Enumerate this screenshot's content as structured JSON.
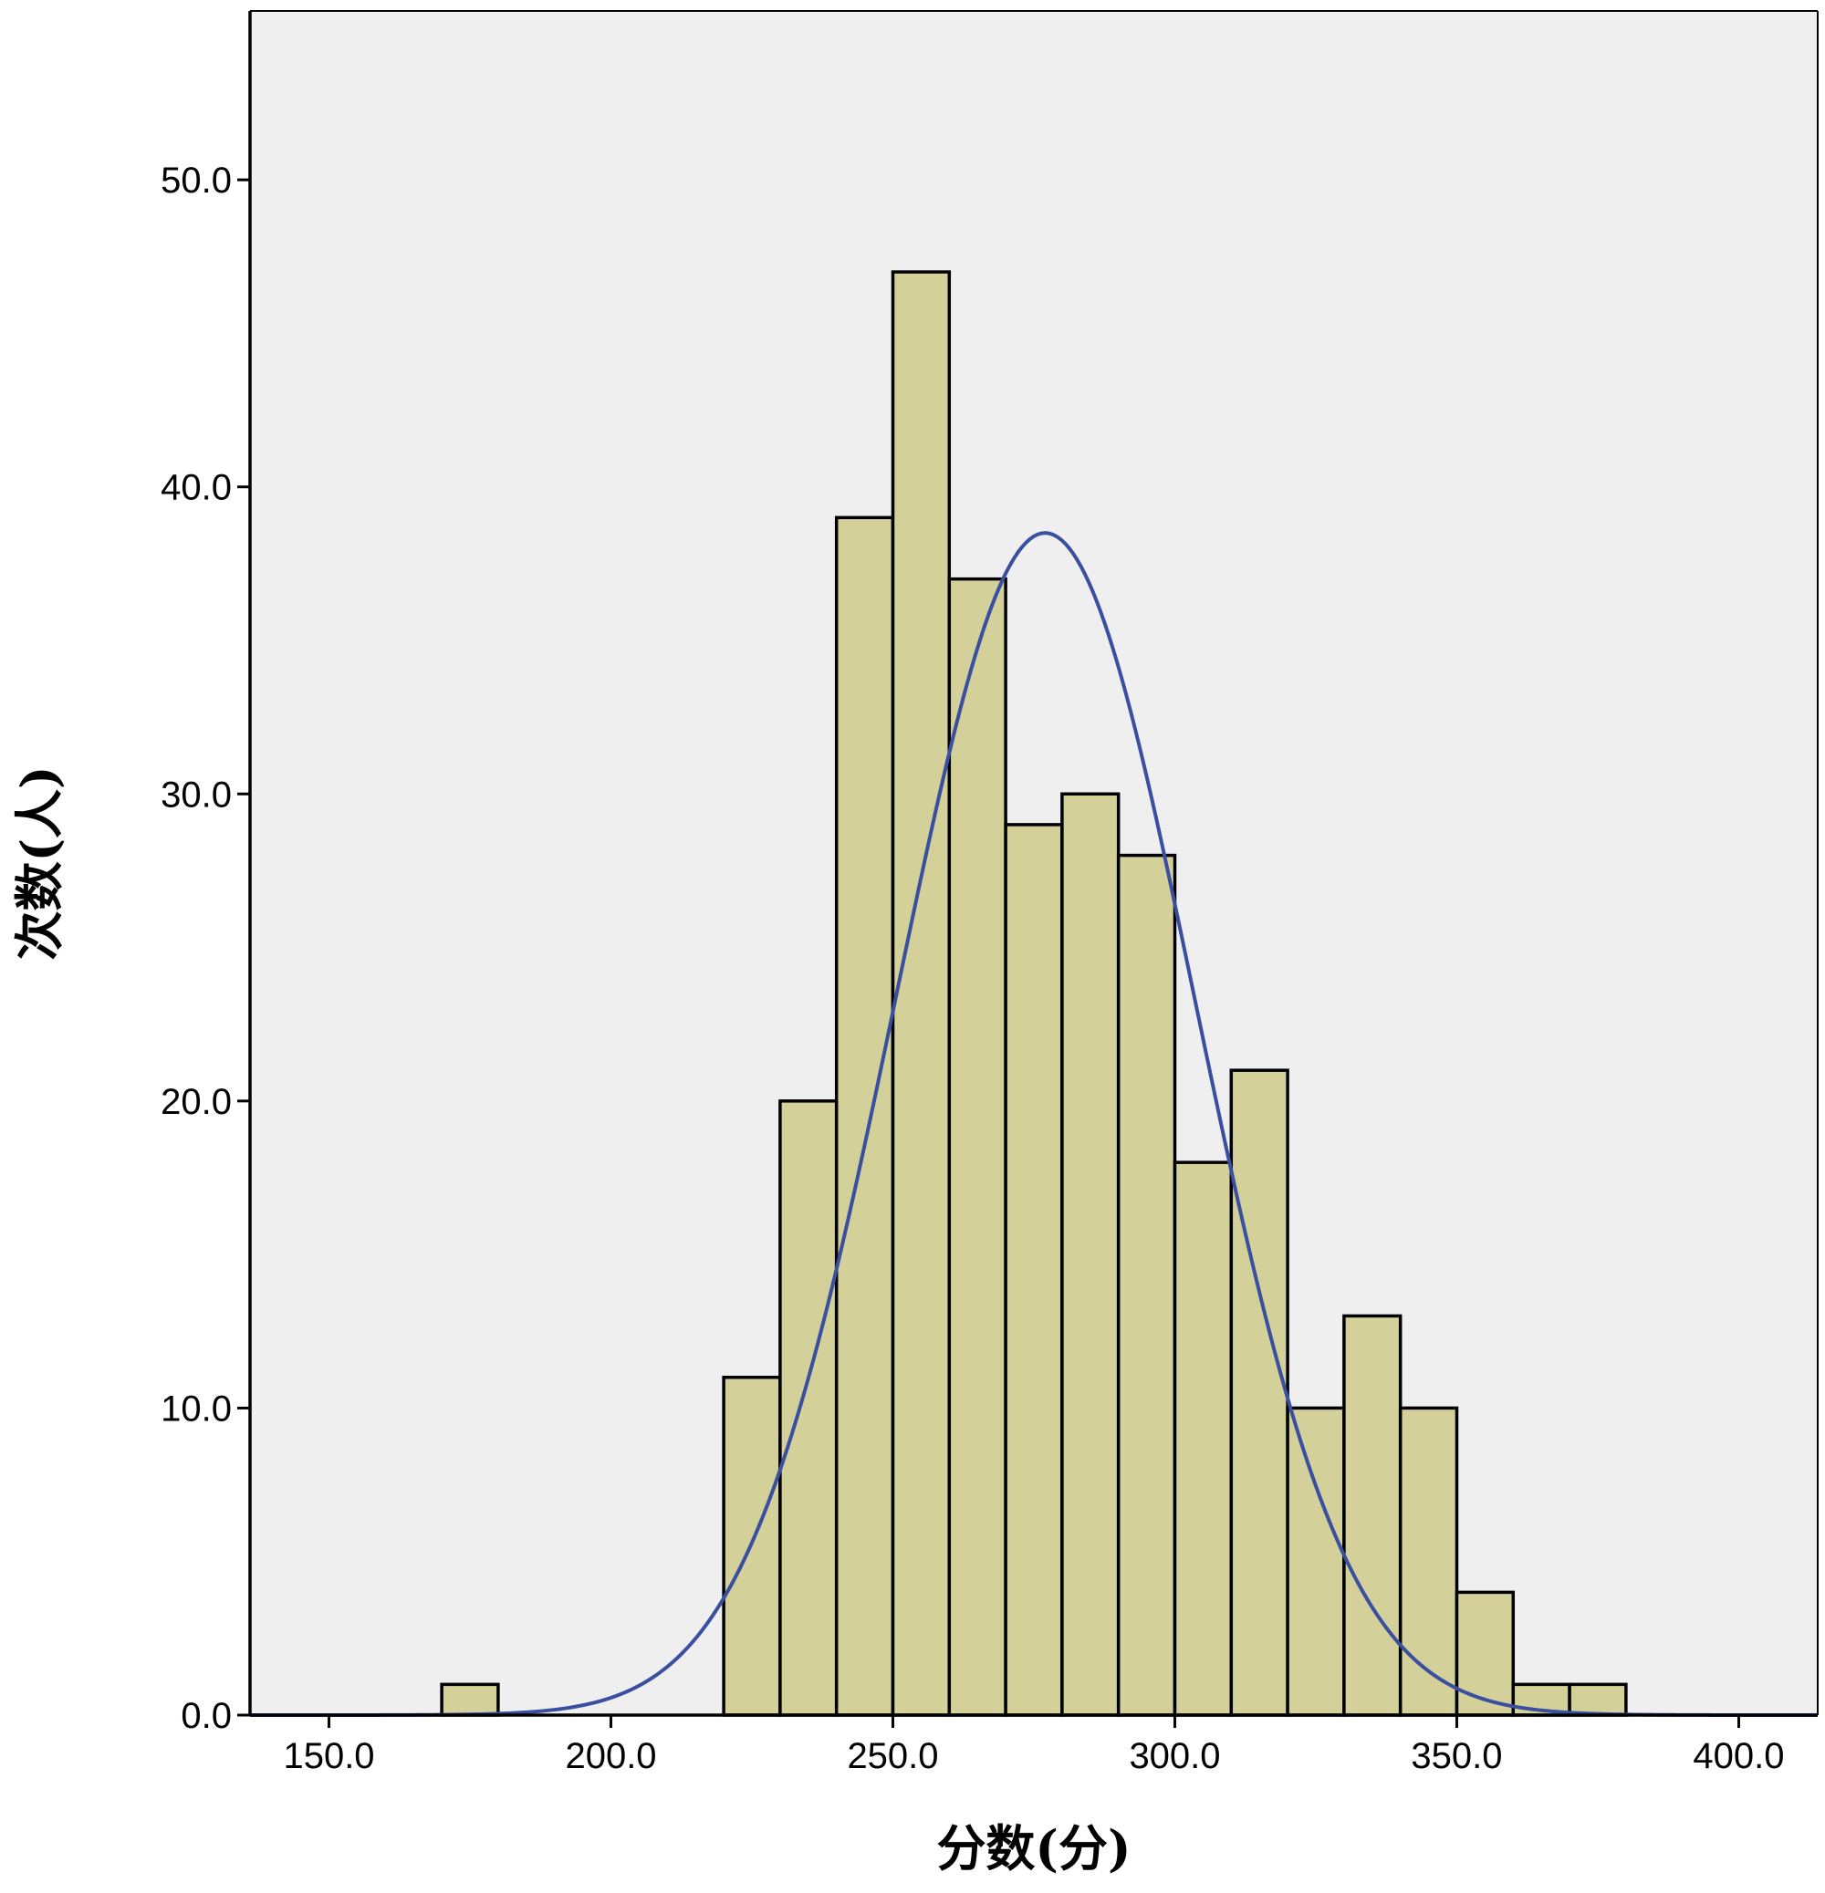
{
  "chart_data": {
    "type": "bar",
    "subtype": "histogram with normal curve",
    "xlabel": "分数(分)",
    "ylabel": "次数(人)",
    "xlim": [
      136,
      414
    ],
    "ylim": [
      0,
      55.5
    ],
    "x_ticks": [
      150,
      200,
      250,
      300,
      350,
      400
    ],
    "x_tick_labels": [
      "150.0",
      "200.0",
      "250.0",
      "300.0",
      "350.0",
      "400.0"
    ],
    "y_ticks": [
      0,
      10,
      20,
      30,
      40,
      50
    ],
    "y_tick_labels": [
      "0.0",
      "10.0",
      "20.0",
      "30.0",
      "40.0",
      "50.0"
    ],
    "bins": [
      {
        "start": 170,
        "end": 180,
        "count": 1
      },
      {
        "start": 220,
        "end": 230,
        "count": 11
      },
      {
        "start": 230,
        "end": 240,
        "count": 20
      },
      {
        "start": 240,
        "end": 250,
        "count": 39
      },
      {
        "start": 250,
        "end": 260,
        "count": 47
      },
      {
        "start": 260,
        "end": 270,
        "count": 37
      },
      {
        "start": 270,
        "end": 280,
        "count": 29
      },
      {
        "start": 280,
        "end": 290,
        "count": 30
      },
      {
        "start": 290,
        "end": 300,
        "count": 28
      },
      {
        "start": 300,
        "end": 310,
        "count": 18
      },
      {
        "start": 310,
        "end": 320,
        "count": 21
      },
      {
        "start": 320,
        "end": 330,
        "count": 10
      },
      {
        "start": 330,
        "end": 340,
        "count": 13
      },
      {
        "start": 340,
        "end": 350,
        "count": 10
      },
      {
        "start": 350,
        "end": 360,
        "count": 4
      },
      {
        "start": 360,
        "end": 370,
        "count": 1
      },
      {
        "start": 370,
        "end": 380,
        "count": 1
      }
    ],
    "normal_curve": {
      "mean": 277,
      "std_dev": 26.5,
      "peak": 38.5
    },
    "grid": false,
    "colors": {
      "plot_background": "#efefef",
      "bar_fill": "#d3d09a",
      "bar_edge": "#000000",
      "curve": "#3a4fa0"
    }
  }
}
